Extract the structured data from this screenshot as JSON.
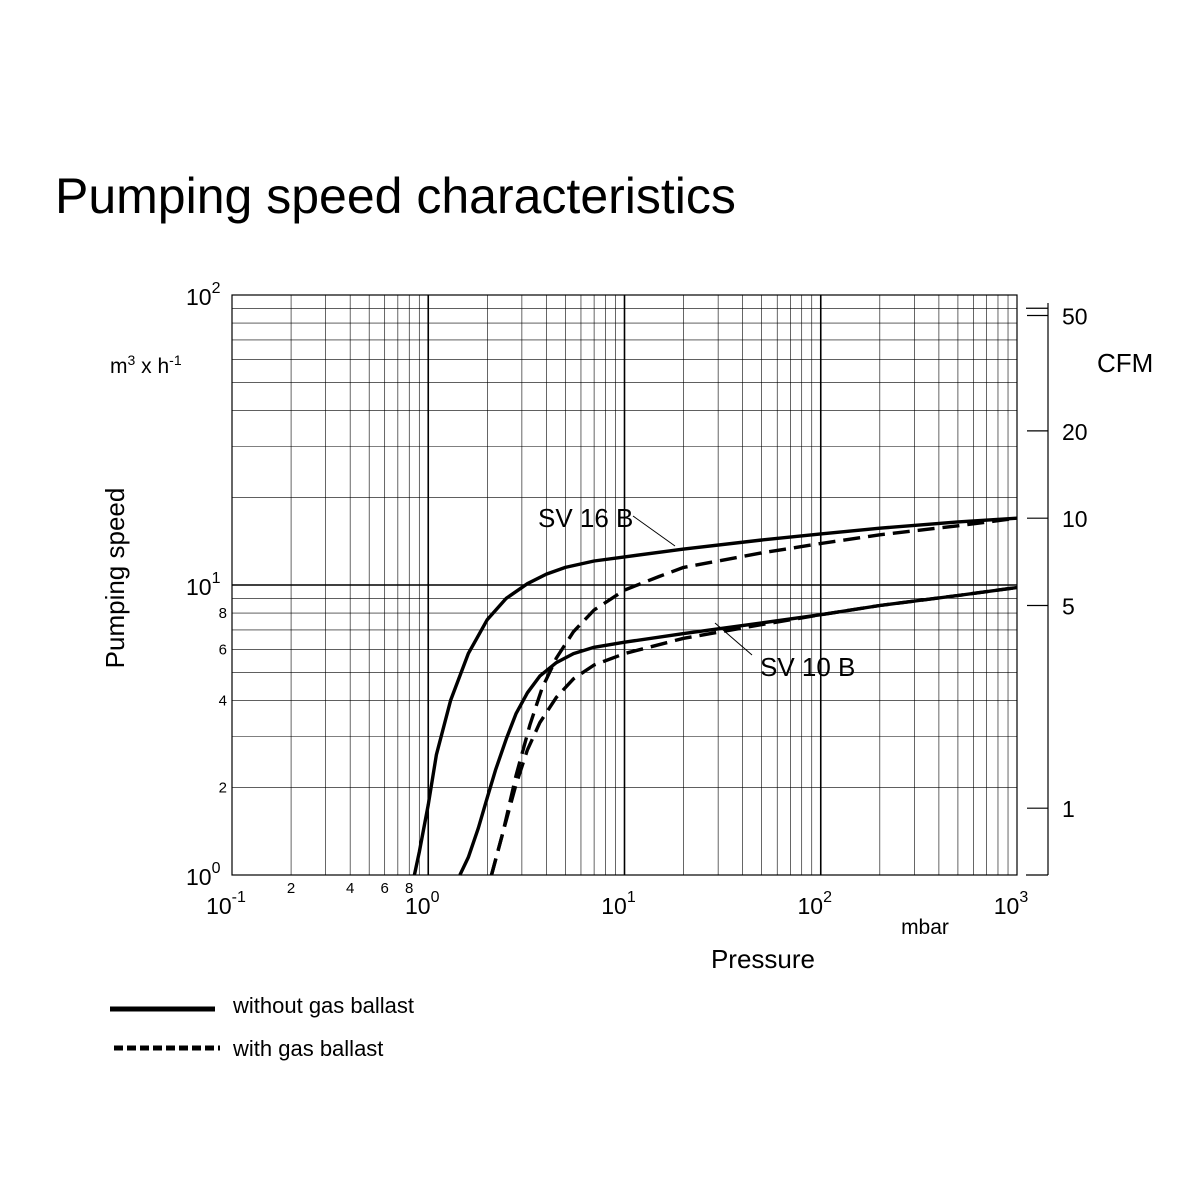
{
  "chart_data": {
    "type": "line",
    "title": "Pumping speed characteristics",
    "xlabel": "Pressure",
    "xunit": "mbar",
    "ylabel": "Pumping speed",
    "yunit_base": "m",
    "yunit_rest": "x h",
    "yunit_right": "CFM",
    "xscale": "log",
    "yscale": "log",
    "xlim": [
      0.1,
      1000
    ],
    "ylim": [
      1,
      100
    ],
    "grid": true,
    "x_major_ticks": [
      {
        "value": 0.1,
        "base": "10",
        "exp": "-1"
      },
      {
        "value": 1,
        "base": "10",
        "exp": "0"
      },
      {
        "value": 10,
        "base": "10",
        "exp": "1"
      },
      {
        "value": 100,
        "base": "10",
        "exp": "2"
      },
      {
        "value": 1000,
        "base": "10",
        "exp": "3"
      }
    ],
    "x_minor_labels": [
      {
        "value": 0.2,
        "label": "2"
      },
      {
        "value": 0.4,
        "label": "4"
      },
      {
        "value": 0.6,
        "label": "6"
      },
      {
        "value": 0.8,
        "label": "8"
      }
    ],
    "y_major_ticks": [
      {
        "value": 1,
        "base": "10",
        "exp": "0"
      },
      {
        "value": 10,
        "base": "10",
        "exp": "1"
      },
      {
        "value": 100,
        "base": "10",
        "exp": "2"
      }
    ],
    "y_minor_labels": [
      {
        "value": 2,
        "label": "2"
      },
      {
        "value": 4,
        "label": "4"
      },
      {
        "value": 6,
        "label": "6"
      },
      {
        "value": 8,
        "label": "8"
      }
    ],
    "right_axis_ticks": [
      {
        "value": 1.7,
        "label": "1"
      },
      {
        "value": 8.5,
        "label": "5"
      },
      {
        "value": 17,
        "label": "10"
      },
      {
        "value": 34,
        "label": "20"
      },
      {
        "value": 85,
        "label": "50"
      }
    ],
    "series": [
      {
        "name": "SV 16 B",
        "style": "solid",
        "x": [
          0.85,
          0.9,
          1.0,
          1.1,
          1.3,
          1.6,
          2.0,
          2.5,
          3.2,
          4.0,
          5.0,
          7.0,
          10,
          20,
          50,
          100,
          200,
          500,
          1000
        ],
        "y": [
          1.0,
          1.2,
          1.75,
          2.6,
          4.0,
          5.8,
          7.6,
          9.0,
          10.1,
          10.9,
          11.5,
          12.1,
          12.5,
          13.3,
          14.3,
          15.0,
          15.7,
          16.5,
          17.0
        ]
      },
      {
        "name": "SV 16 B",
        "style": "dashed",
        "x": [
          2.1,
          2.4,
          2.8,
          3.3,
          3.8,
          4.5,
          5.5,
          7.0,
          10,
          15,
          20,
          50,
          100,
          200,
          500,
          1000
        ],
        "y": [
          1.0,
          1.4,
          2.2,
          3.3,
          4.4,
          5.6,
          6.9,
          8.2,
          9.6,
          10.7,
          11.5,
          12.9,
          13.9,
          14.9,
          16.0,
          17.0
        ]
      },
      {
        "name": "SV 10 B",
        "style": "solid",
        "x": [
          1.45,
          1.6,
          1.8,
          2.0,
          2.2,
          2.5,
          2.8,
          3.2,
          3.7,
          4.5,
          5.5,
          7.0,
          10,
          20,
          50,
          100,
          200,
          500,
          1000
        ],
        "y": [
          1.0,
          1.15,
          1.45,
          1.85,
          2.3,
          2.95,
          3.6,
          4.25,
          4.85,
          5.4,
          5.8,
          6.1,
          6.35,
          6.8,
          7.4,
          7.9,
          8.5,
          9.2,
          9.8
        ]
      },
      {
        "name": "SV 10 B",
        "style": "dashed",
        "x": [
          2.1,
          2.4,
          2.8,
          3.2,
          3.7,
          4.5,
          5.5,
          7.0,
          10,
          20,
          50,
          100,
          200,
          500,
          1000
        ],
        "y": [
          1.0,
          1.4,
          2.05,
          2.7,
          3.35,
          4.1,
          4.75,
          5.3,
          5.8,
          6.55,
          7.3,
          7.9,
          8.5,
          9.2,
          9.8
        ]
      }
    ],
    "annotations": [
      {
        "text": "SV 16 B",
        "pointer_to": {
          "x": 10,
          "y": 12.5
        }
      },
      {
        "text": "SV 10 B",
        "pointer_to": {
          "x": 20,
          "y": 6.8
        }
      }
    ],
    "legend": {
      "placement": "bottom-left",
      "items": [
        {
          "style": "solid",
          "label": "without gas ballast"
        },
        {
          "style": "dashed",
          "label": "with gas ballast"
        }
      ]
    }
  }
}
